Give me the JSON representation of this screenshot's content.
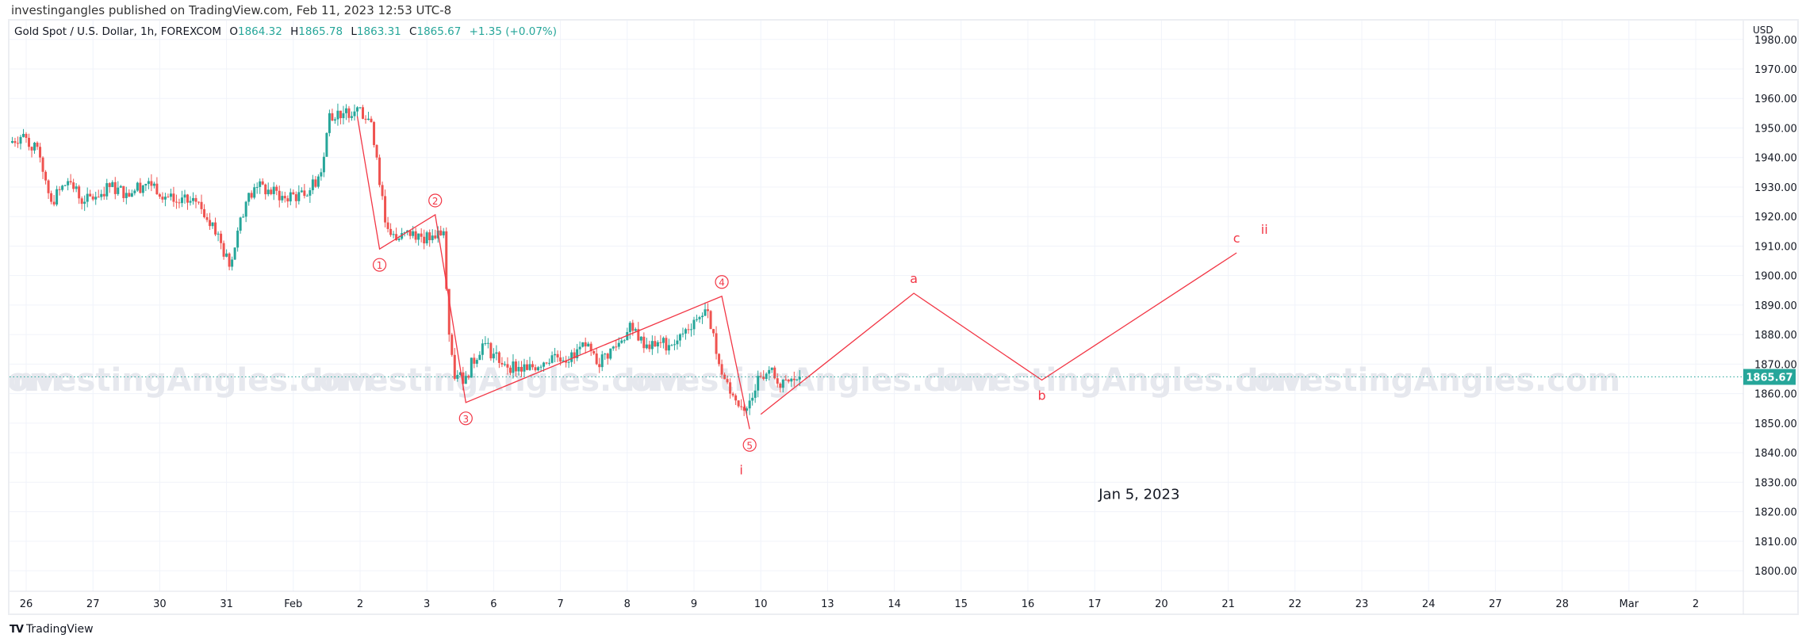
{
  "publisher_line": "investingangles published on TradingView.com, Feb 11, 2023 12:53 UTC-8",
  "legend": {
    "symbol": "Gold Spot / U.S. Dollar, 1h, FOREXCOM",
    "open_label": "O",
    "open": "1864.32",
    "high_label": "H",
    "high": "1865.78",
    "low_label": "L",
    "low": "1863.31",
    "close_label": "C",
    "close": "1865.67",
    "change": "+1.35 (+0.07%)"
  },
  "watermark": "InvestingAngles.com",
  "footer": {
    "logo_icon": "tradingview-logo-icon",
    "brand": "TradingView"
  },
  "colors": {
    "up": "#26a69a",
    "down": "#ef5350",
    "wave": "#f23645",
    "grid": "#f0f3fa",
    "watermark": "#e6e8ee",
    "price_tag": "#26a69a"
  },
  "chart_data": {
    "type": "candlestick",
    "currency_label": "USD",
    "ylim": [
      1795,
      1982
    ],
    "y_ticks": [
      "1980.00",
      "1970.00",
      "1960.00",
      "1950.00",
      "1940.00",
      "1930.00",
      "1920.00",
      "1910.00",
      "1900.00",
      "1890.00",
      "1880.00",
      "1870.00",
      "1860.00",
      "1850.00",
      "1840.00",
      "1830.00",
      "1820.00",
      "1810.00",
      "1800.00"
    ],
    "x_ticks": [
      "26",
      "27",
      "30",
      "31",
      "Feb",
      "2",
      "3",
      "6",
      "7",
      "8",
      "9",
      "10",
      "13",
      "14",
      "15",
      "16",
      "17",
      "20",
      "21",
      "22",
      "23",
      "24",
      "27",
      "28",
      "Mar",
      "2"
    ],
    "grid": true,
    "last_price": 1865.67,
    "last_price_label": "1865.67",
    "approx_closes": [
      [
        "2023-01-25T18:00",
        1945
      ],
      [
        "2023-01-25T23:00",
        1948
      ],
      [
        "2023-01-26T05:00",
        1940
      ],
      [
        "2023-01-26T09:00",
        1925
      ],
      [
        "2023-01-26T15:00",
        1932
      ],
      [
        "2023-01-26T21:00",
        1925
      ],
      [
        "2023-01-27T06:00",
        1930
      ],
      [
        "2023-01-27T12:00",
        1928
      ],
      [
        "2023-01-27T20:00",
        1932
      ],
      [
        "2023-01-30T05:00",
        1925
      ],
      [
        "2023-01-30T13:00",
        1925
      ],
      [
        "2023-01-30T19:00",
        1918
      ],
      [
        "2023-01-31T01:00",
        1903
      ],
      [
        "2023-01-31T07:00",
        1925
      ],
      [
        "2023-01-31T11:00",
        1930
      ],
      [
        "2023-01-31T20:00",
        1927
      ],
      [
        "2023-02-01T04:00",
        1927
      ],
      [
        "2023-02-01T10:00",
        1935
      ],
      [
        "2023-02-01T13:00",
        1955
      ],
      [
        "2023-02-01T18:00",
        1955
      ],
      [
        "2023-02-01T23:00",
        1957
      ],
      [
        "2023-02-02T04:00",
        1952
      ],
      [
        "2023-02-02T06:00",
        1940
      ],
      [
        "2023-02-02T09:00",
        1918
      ],
      [
        "2023-02-02T13:00",
        1912
      ],
      [
        "2023-02-02T19:00",
        1915
      ],
      [
        "2023-02-03T01:00",
        1912
      ],
      [
        "2023-02-03T06:00",
        1915
      ],
      [
        "2023-02-03T08:00",
        1880
      ],
      [
        "2023-02-03T10:00",
        1865
      ],
      [
        "2023-02-03T14:00",
        1866
      ],
      [
        "2023-02-03T20:00",
        1877
      ],
      [
        "2023-02-06T04:00",
        1870
      ],
      [
        "2023-02-06T12:00",
        1868
      ],
      [
        "2023-02-06T21:00",
        1873
      ],
      [
        "2023-02-07T05:00",
        1872
      ],
      [
        "2023-02-07T09:00",
        1876
      ],
      [
        "2023-02-07T13:00",
        1870
      ],
      [
        "2023-02-07T22:00",
        1878
      ],
      [
        "2023-02-08T01:00",
        1884
      ],
      [
        "2023-02-08T04:00",
        1878
      ],
      [
        "2023-02-08T10:00",
        1876
      ],
      [
        "2023-02-08T18:00",
        1878
      ],
      [
        "2023-02-09T00:00",
        1885
      ],
      [
        "2023-02-09T05:00",
        1888
      ],
      [
        "2023-02-09T09:00",
        1870
      ],
      [
        "2023-02-09T13:00",
        1860
      ],
      [
        "2023-02-09T19:00",
        1855
      ],
      [
        "2023-02-09T23:00",
        1866
      ],
      [
        "2023-02-10T03:00",
        1868
      ],
      [
        "2023-02-10T07:00",
        1862
      ],
      [
        "2023-02-10T14:00",
        1865.67
      ]
    ],
    "wave_lines": [
      [
        [
          "2023-02-01T23:00",
          1954
        ],
        [
          "2023-02-02T07:00",
          1909
        ],
        [
          "2023-02-03T03:00",
          1920.6
        ],
        [
          "2023-02-03T14:00",
          1857
        ],
        [
          "2023-02-09T10:00",
          1893
        ],
        [
          "2023-02-09T20:00",
          1848
        ]
      ],
      [
        [
          "2023-02-10T00:00",
          1853
        ],
        [
          "2023-02-14T07:00",
          1894
        ],
        [
          "2023-02-16T05:00",
          1864.6
        ],
        [
          "2023-02-21T03:00",
          1907.7
        ]
      ]
    ],
    "annotations": [
      {
        "text": "①",
        "t": "2023-02-02T07:00",
        "price": 1909,
        "pos": "below",
        "circle": true
      },
      {
        "text": "②",
        "t": "2023-02-03T03:00",
        "price": 1920.6,
        "pos": "above",
        "circle": true
      },
      {
        "text": "③",
        "t": "2023-02-03T14:00",
        "price": 1857,
        "pos": "below",
        "circle": true
      },
      {
        "text": "④",
        "t": "2023-02-09T10:00",
        "price": 1893,
        "pos": "above",
        "circle": true
      },
      {
        "text": "⑤",
        "t": "2023-02-09T20:00",
        "price": 1848,
        "pos": "below",
        "circle": true
      },
      {
        "text": "i",
        "t": "2023-02-09T17:00",
        "price": 1834,
        "pos": "at"
      },
      {
        "text": "a",
        "t": "2023-02-14T07:00",
        "price": 1894,
        "pos": "above"
      },
      {
        "text": "b",
        "t": "2023-02-16T05:00",
        "price": 1864.6,
        "pos": "below"
      },
      {
        "text": "c",
        "t": "2023-02-21T03:00",
        "price": 1907.7,
        "pos": "above"
      },
      {
        "text": "ii",
        "t": "2023-02-21T13:00",
        "price": 1915.5,
        "pos": "at"
      }
    ],
    "note": {
      "text": "Jan 5, 2023",
      "t": "2023-02-17T16:00",
      "price": 1826
    }
  }
}
